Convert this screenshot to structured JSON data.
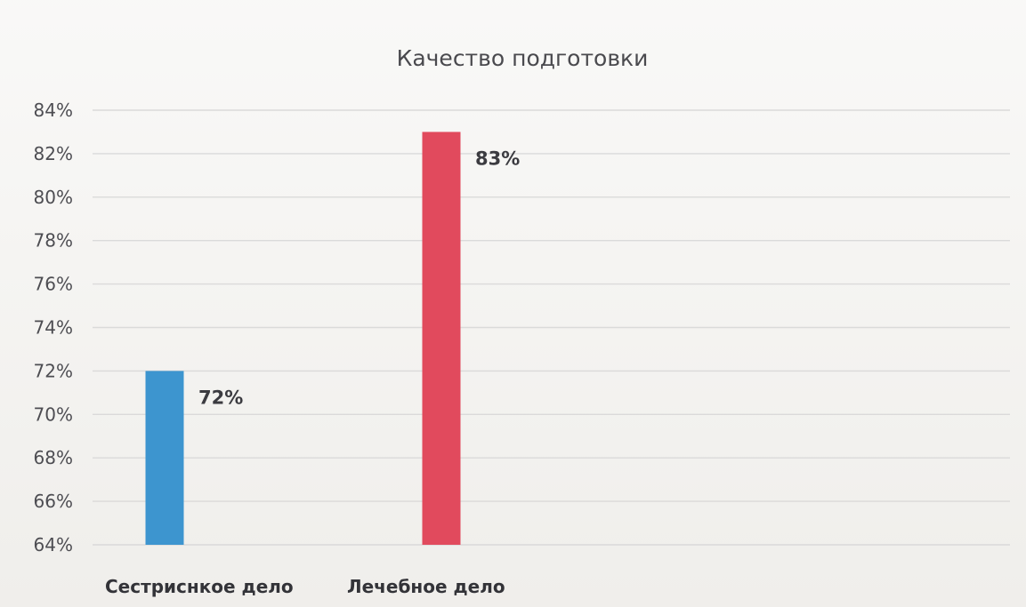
{
  "chart_data": {
    "type": "bar",
    "title": "Качество подготовки",
    "categories": [
      "Сестриснкое дело",
      "Лечебное дело"
    ],
    "series": [
      {
        "values": [
          72,
          83
        ],
        "data_labels": [
          "72%",
          "83%"
        ]
      }
    ],
    "colors": [
      "#3d95cf",
      "#e14a5d"
    ],
    "ylim": [
      64,
      84
    ],
    "yticks": [
      "84%",
      "82%",
      "80%",
      "78%",
      "76%",
      "74%",
      "72%",
      "70%",
      "68%",
      "66%",
      "64%"
    ],
    "grid": true,
    "legend": "none"
  }
}
